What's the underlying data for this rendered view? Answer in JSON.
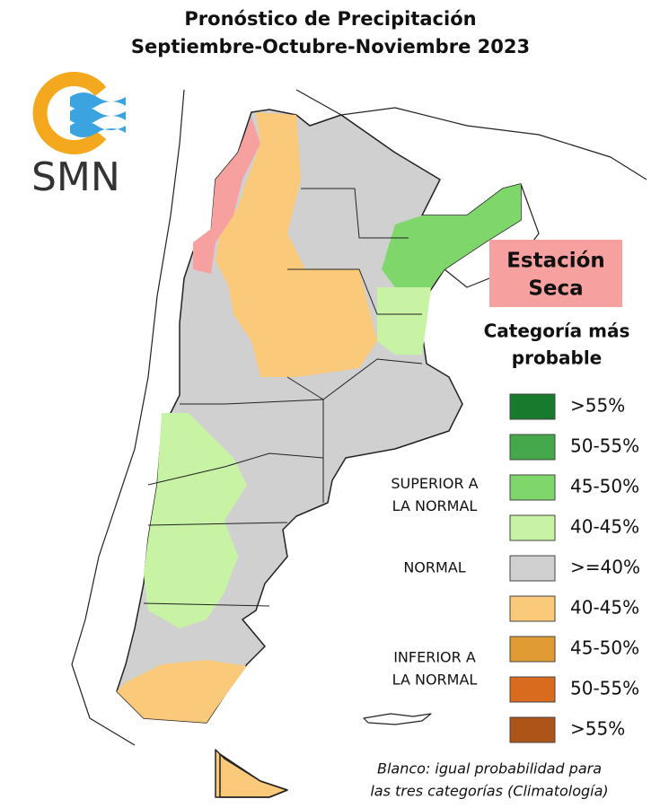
{
  "header": {
    "title_lines": [
      "Pronóstico de Precipitación",
      "Septiembre-Octubre-Noviembre 2023"
    ]
  },
  "logo": {
    "text": "SMN"
  },
  "season_box": {
    "lines": [
      "Estación",
      "Seca"
    ]
  },
  "legend": {
    "title_lines": [
      "Categoría más",
      "probable"
    ],
    "items": [
      {
        "label": ">55%",
        "color": "#177a2c"
      },
      {
        "label": "50-55%",
        "color": "#45a84b"
      },
      {
        "label": "45-50%",
        "color": "#7fd66b"
      },
      {
        "label": "40-45%",
        "color": "#c8f2a4"
      },
      {
        "label": ">=40%",
        "color": "#d0d0d0"
      },
      {
        "label": "40-45%",
        "color": "#fbc97a"
      },
      {
        "label": "45-50%",
        "color": "#e09b34"
      },
      {
        "label": "50-55%",
        "color": "#d96b1f"
      },
      {
        "label": ">55%",
        "color": "#ad5419"
      }
    ],
    "groups": [
      {
        "lines": [
          "SUPERIOR A",
          "LA NORMAL"
        ]
      },
      {
        "lines": [
          "NORMAL"
        ]
      },
      {
        "lines": [
          "INFERIOR A",
          "LA NORMAL"
        ]
      }
    ]
  },
  "footnote": {
    "lines": [
      "Blanco: igual probabilidad para",
      "las tres categorías (Climatología)"
    ]
  }
}
